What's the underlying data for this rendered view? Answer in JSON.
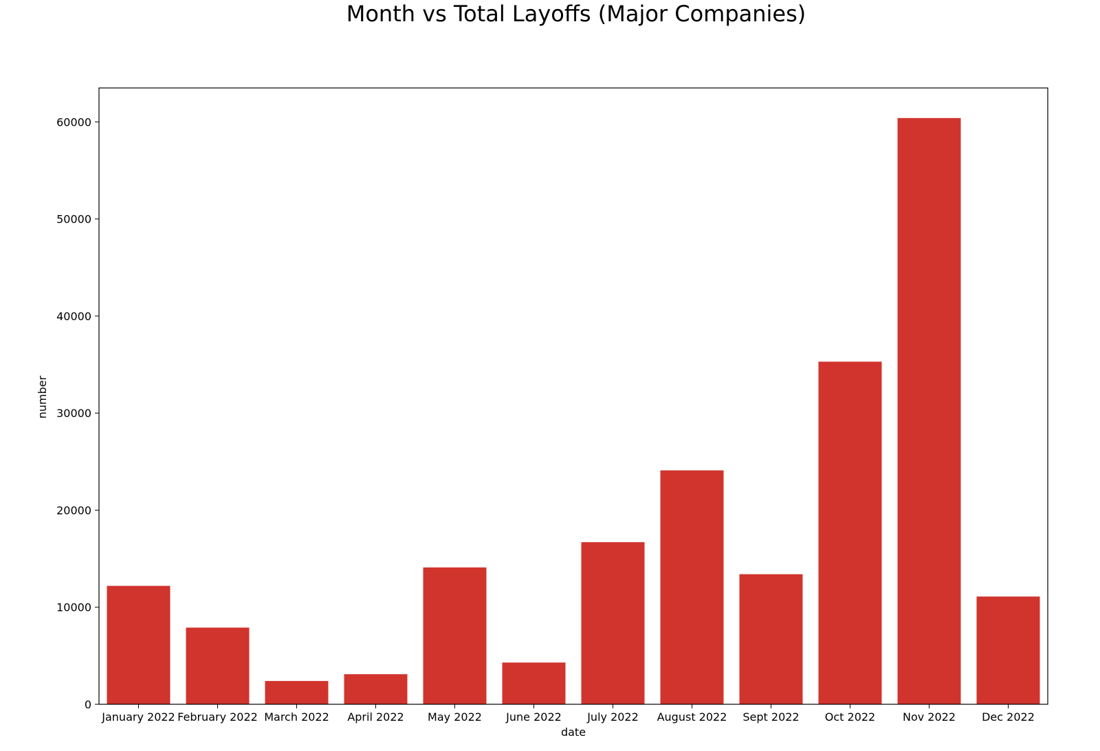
{
  "chart_data": {
    "type": "bar",
    "title": "Month vs Total Layoffs (Major Companies)",
    "xlabel": "date",
    "ylabel": "number",
    "categories": [
      "January 2022",
      "February 2022",
      "March 2022",
      "April 2022",
      "May 2022",
      "June 2022",
      "July 2022",
      "August 2022",
      "Sept 2022",
      "Oct 2022",
      "Nov 2022",
      "Dec 2022"
    ],
    "values": [
      12200,
      7900,
      2400,
      3100,
      14100,
      4300,
      16700,
      24100,
      13400,
      35300,
      60400,
      11100
    ],
    "ylim": [
      0,
      63500
    ],
    "yticks": [
      0,
      10000,
      20000,
      30000,
      40000,
      50000,
      60000
    ],
    "grid": false,
    "bar_color": "#d0342c"
  }
}
